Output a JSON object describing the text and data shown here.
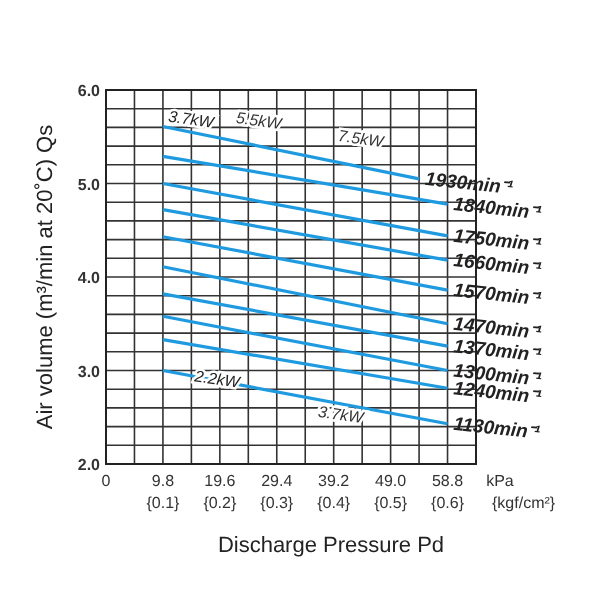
{
  "chart_data": {
    "type": "line",
    "xlabel": "Discharge Pressure Pd",
    "ylabel": "Air volume (m³/min at 20˚C) Qs",
    "xlim": [
      0,
      63.7
    ],
    "ylim": [
      2,
      6
    ],
    "xticks": [
      0,
      {
        "value": 4.9,
        "label": null
      },
      9.8,
      {
        "value": 14.7,
        "label": null
      },
      19.6,
      {
        "value": 24.5,
        "label": null
      },
      29.4,
      {
        "value": 34.3,
        "label": null
      },
      39.2,
      {
        "value": 44.1,
        "label": null
      },
      {
        "value": 49,
        "label": "49.0"
      },
      {
        "value": 53.9,
        "label": null
      },
      58.8,
      {
        "value": 63.7,
        "label": null
      }
    ],
    "x2lim": [
      0,
      0.65
    ],
    "x2ticks": [
      {
        "value": 0.1,
        "label": "{0.1}"
      },
      {
        "value": 0.2,
        "label": "{0.2}"
      },
      {
        "value": 0.3,
        "label": "{0.3}"
      },
      {
        "value": 0.4,
        "label": "{0.4}"
      },
      {
        "value": 0.5,
        "label": "{0.5}"
      },
      {
        "value": 0.6,
        "label": "{0.6}"
      }
    ],
    "x2label": "{kgf/cm²}",
    "yticks": [
      {
        "value": 2,
        "label": "2.0"
      },
      {
        "value": 2.2,
        "label": null
      },
      {
        "value": 2.4,
        "label": null
      },
      {
        "value": 2.6,
        "label": null
      },
      {
        "value": 2.8,
        "label": null
      },
      {
        "value": 3,
        "label": "3.0"
      },
      {
        "value": 3.2,
        "label": null
      },
      {
        "value": 3.4,
        "label": null
      },
      {
        "value": 3.6,
        "label": null
      },
      {
        "value": 3.8,
        "label": null
      },
      {
        "value": 4,
        "label": "4.0"
      },
      {
        "value": 4.2,
        "label": null
      },
      {
        "value": 4.4,
        "label": null
      },
      {
        "value": 4.6,
        "label": null
      },
      {
        "value": 4.8,
        "label": null
      },
      {
        "value": 5,
        "label": "5.0"
      },
      {
        "value": 5.2,
        "label": null
      },
      {
        "value": 5.4,
        "label": null
      },
      {
        "value": 5.6,
        "label": null
      },
      {
        "value": 5.8,
        "label": null
      },
      {
        "value": 6,
        "label": "6.0"
      }
    ],
    "grid": true,
    "marker": "none",
    "line_style": "solid",
    "series": [
      {
        "name": "1930min⁻¹",
        "color": "#1e9be0",
        "x": [
          9.8,
          53.9
        ],
        "values": [
          5.61,
          5.05
        ]
      },
      {
        "name": "1840min⁻¹",
        "color": "#1e9be0",
        "x": [
          9.8,
          58.8
        ],
        "values": [
          5.29,
          4.78
        ]
      },
      {
        "name": "1750min⁻¹",
        "color": "#1e9be0",
        "x": [
          9.8,
          58.8
        ],
        "values": [
          5.0,
          4.44
        ]
      },
      {
        "name": "1660min⁻¹",
        "color": "#1e9be0",
        "x": [
          9.8,
          58.8
        ],
        "values": [
          4.72,
          4.18
        ]
      },
      {
        "name": "1570min⁻¹",
        "color": "#1e9be0",
        "x": [
          9.8,
          58.8
        ],
        "values": [
          4.43,
          3.86
        ]
      },
      {
        "name": "1470min⁻¹",
        "color": "#1e9be0",
        "x": [
          9.8,
          58.8
        ],
        "values": [
          4.11,
          3.5
        ]
      },
      {
        "name": "1370min⁻¹",
        "color": "#1e9be0",
        "x": [
          9.8,
          58.8
        ],
        "values": [
          3.82,
          3.26
        ]
      },
      {
        "name": "1300min⁻¹",
        "color": "#1e9be0",
        "x": [
          9.8,
          58.8
        ],
        "values": [
          3.58,
          3.0
        ]
      },
      {
        "name": "1240min⁻¹",
        "color": "#1e9be0",
        "x": [
          9.8,
          58.8
        ],
        "values": [
          3.33,
          2.81
        ]
      },
      {
        "name": "1130min⁻¹",
        "color": "#1e9be0",
        "x": [
          9.8,
          58.8
        ],
        "values": [
          3.0,
          2.43
        ]
      }
    ],
    "annotations": [
      {
        "text": "3.7kW",
        "x": 14.5,
        "y": 5.63
      },
      "5.5kW",
      "7.5kW",
      {
        "text": "2.2kW",
        "x": 19,
        "y": 2.85
      },
      "3.7kW",
      "kPa"
    ]
  }
}
